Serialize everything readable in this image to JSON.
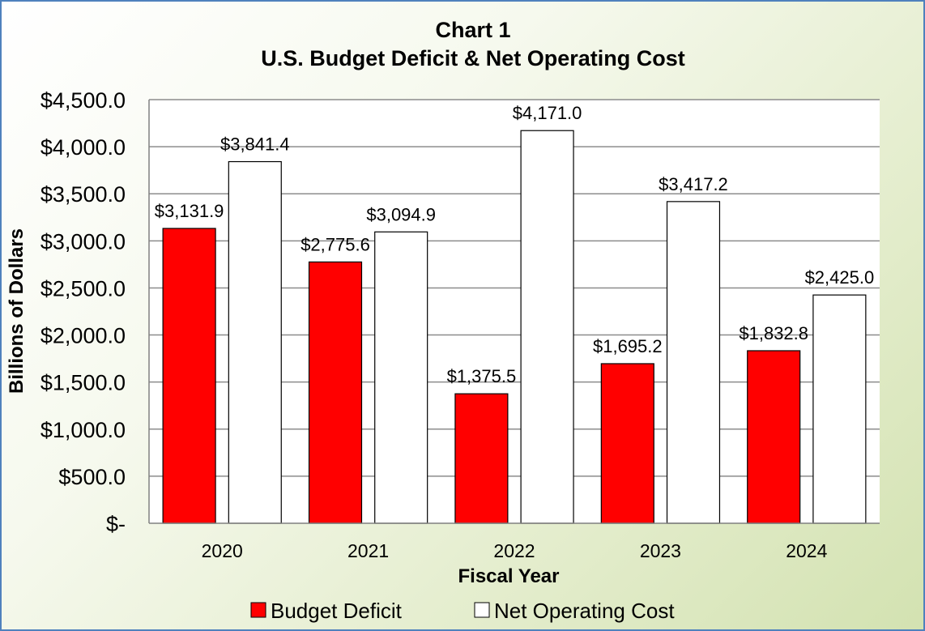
{
  "chart_data": {
    "type": "bar",
    "title": "Chart 1",
    "subtitle": "U.S. Budget Deficit & Net Operating Cost",
    "xlabel": "Fiscal Year",
    "ylabel": "Billions of Dollars",
    "categories": [
      "2020",
      "2021",
      "2022",
      "2023",
      "2024"
    ],
    "series": [
      {
        "name": "Budget Deficit",
        "color": "#ff0000",
        "values": [
          3131.9,
          2775.6,
          1375.5,
          1695.2,
          1832.8
        ],
        "labels": [
          "$3,131.9",
          "$2,775.6",
          "$1,375.5",
          "$1,695.2",
          "$1,832.8"
        ]
      },
      {
        "name": "Net Operating Cost",
        "color": "#ffffff",
        "values": [
          3841.4,
          3094.9,
          4171.0,
          3417.2,
          2425.0
        ],
        "labels": [
          "$3,841.4",
          "$3,094.9",
          "$4,171.0",
          "$3,417.2",
          "$2,425.0"
        ]
      }
    ],
    "ylim": [
      0,
      4500
    ],
    "yticks": [
      0,
      500,
      1000,
      1500,
      2000,
      2500,
      3000,
      3500,
      4000,
      4500
    ],
    "ytick_labels": [
      "$-",
      "$500.0",
      "$1,000.0",
      "$1,500.0",
      "$2,000.0",
      "$2,500.0",
      "$3,000.0",
      "$3,500.0",
      "$4,000.0",
      "$4,500.0"
    ],
    "grid": true,
    "legend": "bottom"
  }
}
